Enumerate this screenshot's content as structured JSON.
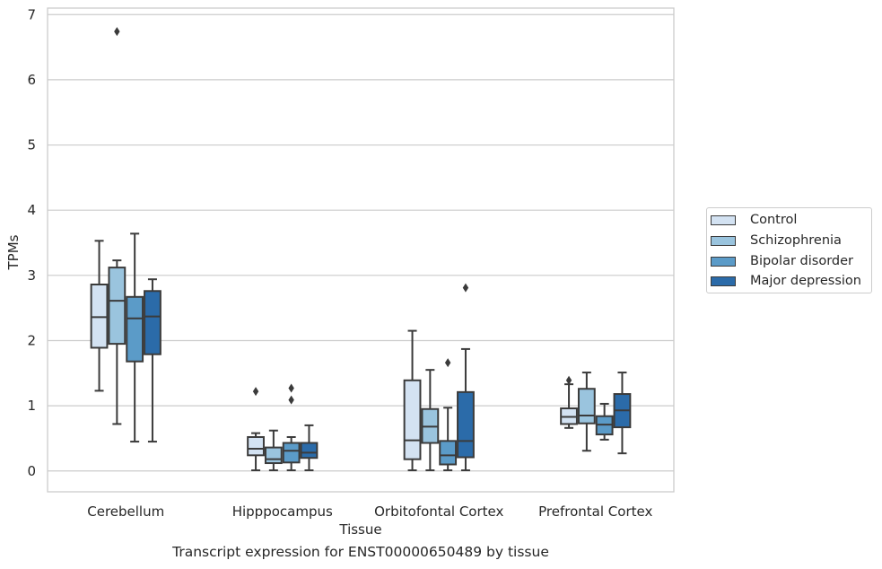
{
  "chart_data": {
    "type": "box",
    "ylabel": "TPMs",
    "xlabel": "Tissue",
    "caption": "Transcript expression for ENST00000650489 by tissue",
    "ylim": [
      -0.32,
      7.1
    ],
    "yticks": [
      0,
      1,
      2,
      3,
      4,
      5,
      6,
      7
    ],
    "grid": true,
    "legend_position": "right",
    "categories": [
      "Cerebellum",
      "Hipppocampus",
      "Orbitofontal Cortex",
      "Prefrontal Cortex"
    ],
    "series": [
      {
        "name": "Control",
        "color": "#d3e2f2",
        "boxes": [
          {
            "whislo": 1.23,
            "q1": 1.89,
            "med": 2.36,
            "q3": 2.86,
            "whishi": 3.53,
            "fliers": []
          },
          {
            "whislo": 0.01,
            "q1": 0.24,
            "med": 0.34,
            "q3": 0.52,
            "whishi": 0.58,
            "fliers": [
              1.22
            ]
          },
          {
            "whislo": 0.01,
            "q1": 0.18,
            "med": 0.47,
            "q3": 1.39,
            "whishi": 2.15,
            "fliers": []
          },
          {
            "whislo": 0.66,
            "q1": 0.72,
            "med": 0.83,
            "q3": 0.96,
            "whishi": 1.33,
            "fliers": [
              1.39
            ]
          }
        ]
      },
      {
        "name": "Schizophrenia",
        "color": "#9ac4de",
        "boxes": [
          {
            "whislo": 0.72,
            "q1": 1.95,
            "med": 2.61,
            "q3": 3.12,
            "whishi": 3.23,
            "fliers": [
              6.74
            ]
          },
          {
            "whislo": 0.01,
            "q1": 0.12,
            "med": 0.18,
            "q3": 0.36,
            "whishi": 0.62,
            "fliers": []
          },
          {
            "whislo": 0.01,
            "q1": 0.43,
            "med": 0.68,
            "q3": 0.95,
            "whishi": 1.55,
            "fliers": []
          },
          {
            "whislo": 0.31,
            "q1": 0.73,
            "med": 0.85,
            "q3": 1.26,
            "whishi": 1.51,
            "fliers": []
          }
        ]
      },
      {
        "name": "Bipolar disorder",
        "color": "#5b9bc8",
        "boxes": [
          {
            "whislo": 0.45,
            "q1": 1.68,
            "med": 2.34,
            "q3": 2.67,
            "whishi": 3.64,
            "fliers": []
          },
          {
            "whislo": 0.01,
            "q1": 0.13,
            "med": 0.31,
            "q3": 0.43,
            "whishi": 0.52,
            "fliers": [
              1.09,
              1.27
            ]
          },
          {
            "whislo": 0.01,
            "q1": 0.1,
            "med": 0.24,
            "q3": 0.46,
            "whishi": 0.97,
            "fliers": [
              1.66
            ]
          },
          {
            "whislo": 0.48,
            "q1": 0.56,
            "med": 0.71,
            "q3": 0.84,
            "whishi": 1.03,
            "fliers": []
          }
        ]
      },
      {
        "name": "Major depression",
        "color": "#2b6ba9",
        "boxes": [
          {
            "whislo": 0.45,
            "q1": 1.79,
            "med": 2.37,
            "q3": 2.76,
            "whishi": 2.94,
            "fliers": []
          },
          {
            "whislo": 0.01,
            "q1": 0.2,
            "med": 0.28,
            "q3": 0.43,
            "whishi": 0.7,
            "fliers": []
          },
          {
            "whislo": 0.01,
            "q1": 0.21,
            "med": 0.46,
            "q3": 1.21,
            "whishi": 1.87,
            "fliers": [
              2.81
            ]
          },
          {
            "whislo": 0.27,
            "q1": 0.67,
            "med": 0.93,
            "q3": 1.18,
            "whishi": 1.51,
            "fliers": []
          }
        ]
      }
    ]
  }
}
